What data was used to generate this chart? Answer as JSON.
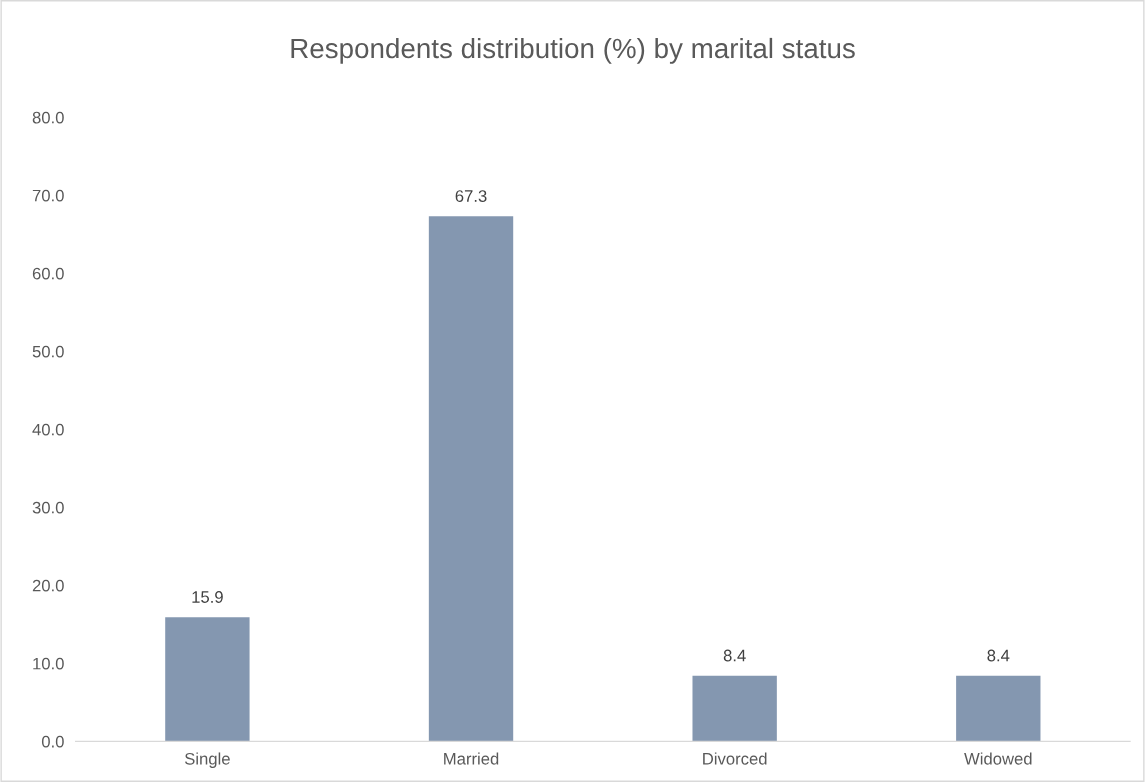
{
  "chart_data": {
    "type": "bar",
    "title": "Respondents distribution (%) by marital status",
    "categories": [
      "Single",
      "Married",
      "Divorced",
      "Widowed"
    ],
    "values": [
      15.9,
      67.3,
      8.4,
      8.4
    ],
    "color": "#8497b0",
    "ylim": [
      0,
      80
    ],
    "yticks": [
      {
        "value": 0,
        "label": "0.0"
      },
      {
        "value": 10,
        "label": "10.0"
      },
      {
        "value": 20,
        "label": "20.0"
      },
      {
        "value": 30,
        "label": "30.0"
      },
      {
        "value": 40,
        "label": "40.0"
      },
      {
        "value": 50,
        "label": "50.0"
      },
      {
        "value": 60,
        "label": "60.0"
      },
      {
        "value": 70,
        "label": "70.0"
      },
      {
        "value": 80,
        "label": "80.0"
      }
    ],
    "data_labels": true,
    "grid": false,
    "legend": false
  }
}
